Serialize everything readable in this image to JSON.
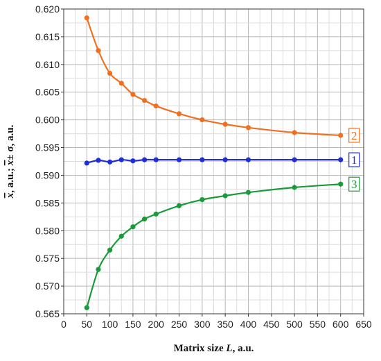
{
  "chart_data": {
    "type": "line",
    "title": "",
    "xlabel_parts": [
      "Matrix size ",
      "L",
      ", a.u."
    ],
    "ylabel_parts": [
      "x",
      ", a.u.; ",
      "x",
      "± σ, a.u."
    ],
    "xlim": [
      0,
      650
    ],
    "ylim": [
      0.565,
      0.62
    ],
    "x_ticks": [
      "0",
      "50",
      "100",
      "150",
      "200",
      "250",
      "300",
      "350",
      "400",
      "450",
      "500",
      "550",
      "600",
      "650"
    ],
    "y_ticks": [
      "0.565",
      "0.570",
      "0.575",
      "0.580",
      "0.585",
      "0.590",
      "0.595",
      "0.600",
      "0.605",
      "0.610",
      "0.615",
      "0.620"
    ],
    "grid": true,
    "legend": "none; each series tagged by a boxed number at its right end",
    "series": [
      {
        "tag": "1",
        "color": "#1f2fd6",
        "x": [
          50,
          75,
          100,
          125,
          150,
          175,
          200,
          250,
          300,
          350,
          400,
          500,
          600
        ],
        "y": [
          0.5922,
          0.5927,
          0.5924,
          0.5928,
          0.5926,
          0.5928,
          0.5928,
          0.5928,
          0.5928,
          0.5928,
          0.5928,
          0.5928,
          0.5928
        ]
      },
      {
        "tag": "2",
        "color": "#f07020",
        "x": [
          50,
          75,
          100,
          125,
          150,
          175,
          200,
          250,
          300,
          350,
          400,
          500,
          600
        ],
        "y": [
          0.6184,
          0.6125,
          0.6084,
          0.6066,
          0.6046,
          0.6035,
          0.6025,
          0.6011,
          0.6,
          0.5992,
          0.5986,
          0.5977,
          0.5972
        ]
      },
      {
        "tag": "3",
        "color": "#1a9a3a",
        "x": [
          50,
          75,
          100,
          125,
          150,
          175,
          200,
          250,
          300,
          350,
          400,
          500,
          600
        ],
        "y": [
          0.5661,
          0.573,
          0.5765,
          0.579,
          0.5807,
          0.5821,
          0.583,
          0.5845,
          0.5856,
          0.5863,
          0.5869,
          0.5878,
          0.5884
        ]
      }
    ]
  }
}
